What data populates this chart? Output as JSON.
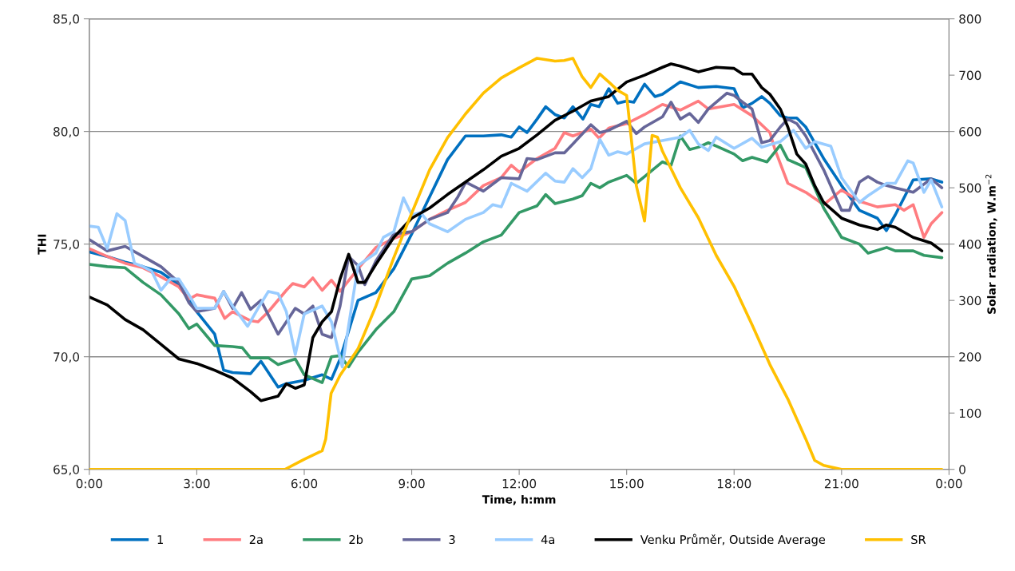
{
  "chart_data": {
    "type": "line",
    "xlabel": "Time, h:mm",
    "ylabel": "THI",
    "y2label": "Solar radiation, W.m$^{−2}$",
    "xlim": [
      0,
      24
    ],
    "xticks": [
      {
        "value": 0,
        "label": "0:00"
      },
      {
        "value": 3,
        "label": "3:00"
      },
      {
        "value": 6,
        "label": "6:00"
      },
      {
        "value": 9,
        "label": "9:00"
      },
      {
        "value": 12,
        "label": "12:00"
      },
      {
        "value": 15,
        "label": "15:00"
      },
      {
        "value": 18,
        "label": "18:00"
      },
      {
        "value": 21,
        "label": "21:00"
      },
      {
        "value": 24,
        "label": "0:00"
      }
    ],
    "ylim": [
      65,
      85
    ],
    "yticks": [
      {
        "value": 65,
        "label": "65,0"
      },
      {
        "value": 70,
        "label": "70,0"
      },
      {
        "value": 75,
        "label": "75,0"
      },
      {
        "value": 80,
        "label": "80,0"
      },
      {
        "value": 85,
        "label": "85,0"
      }
    ],
    "y2lim": [
      0,
      800
    ],
    "y2ticks": [
      0,
      100,
      200,
      300,
      400,
      500,
      600,
      700,
      800
    ],
    "grid": "y",
    "legend": "bottom",
    "marker": "none",
    "line_style": "solid",
    "series": [
      {
        "name": "1",
        "color": "#0070c0",
        "x": [
          0,
          0.5,
          1,
          1.5,
          2,
          2.5,
          3,
          3.5,
          3.75,
          4,
          4.5,
          4.79,
          5,
          5.27,
          5.5,
          6,
          6.5,
          6.76,
          7,
          7.5,
          8,
          8.5,
          9,
          9.5,
          10,
          10.5,
          11,
          11.5,
          11.78,
          12,
          12.22,
          12.5,
          12.74,
          13,
          13.26,
          13.5,
          13.78,
          14,
          14.23,
          14.5,
          14.75,
          15,
          15.2,
          15.5,
          15.79,
          16,
          16.5,
          17,
          17.5,
          18,
          18.24,
          18.5,
          18.77,
          19,
          19.29,
          19.5,
          19.75,
          20,
          20.5,
          21,
          21.5,
          22,
          22.25,
          22.5,
          23,
          23.5,
          23.8
        ],
        "values": [
          74.65,
          74.45,
          74.2,
          74.0,
          73.75,
          73.2,
          72.0,
          71.0,
          69.4,
          69.3,
          69.25,
          69.8,
          69.3,
          68.65,
          68.8,
          68.95,
          69.2,
          69.0,
          69.9,
          72.5,
          72.85,
          73.9,
          75.45,
          77.1,
          78.75,
          79.8,
          79.8,
          79.85,
          79.75,
          80.2,
          79.95,
          80.55,
          81.1,
          80.75,
          80.6,
          81.1,
          80.55,
          81.2,
          81.1,
          81.9,
          81.25,
          81.35,
          81.3,
          82.1,
          81.55,
          81.65,
          82.2,
          81.95,
          82.0,
          81.9,
          81.05,
          81.25,
          81.55,
          81.25,
          80.7,
          80.6,
          80.6,
          80.2,
          78.8,
          77.6,
          76.5,
          76.15,
          75.6,
          76.3,
          77.85,
          77.9,
          77.75
        ]
      },
      {
        "name": "2a",
        "color": "#ff7c80",
        "x": [
          0,
          0.5,
          1,
          1.5,
          2,
          2.5,
          2.78,
          3,
          3.5,
          3.78,
          4,
          4.5,
          4.71,
          5,
          5.5,
          5.68,
          6,
          6.24,
          6.5,
          6.76,
          7,
          7.5,
          8,
          8.5,
          9,
          9.5,
          10,
          10.5,
          11,
          11.5,
          11.78,
          12,
          12.5,
          13,
          13.26,
          13.5,
          14,
          14.23,
          14.5,
          15,
          15.5,
          16,
          16.5,
          17,
          17.28,
          18,
          18.5,
          19,
          19.14,
          19.5,
          20,
          20.5,
          21,
          21.5,
          22,
          22.5,
          22.74,
          23,
          23.3,
          23.5,
          23.8
        ],
        "values": [
          74.8,
          74.45,
          74.15,
          73.95,
          73.55,
          73.1,
          72.55,
          72.75,
          72.6,
          71.7,
          72.0,
          71.6,
          71.55,
          72.0,
          72.95,
          73.25,
          73.1,
          73.5,
          72.95,
          73.4,
          72.9,
          73.9,
          74.85,
          75.25,
          75.55,
          76.1,
          76.5,
          76.85,
          77.6,
          77.95,
          78.5,
          78.2,
          78.8,
          79.25,
          79.95,
          79.8,
          80.1,
          79.7,
          80.15,
          80.35,
          80.75,
          81.2,
          80.95,
          81.35,
          81.0,
          81.2,
          80.7,
          79.95,
          79.2,
          77.7,
          77.3,
          76.75,
          77.4,
          76.9,
          76.65,
          76.75,
          76.5,
          76.75,
          75.3,
          75.9,
          76.4
        ]
      },
      {
        "name": "2b",
        "color": "#339966",
        "x": [
          0,
          0.5,
          1,
          1.5,
          2,
          2.5,
          2.78,
          3,
          3.5,
          4,
          4.27,
          4.5,
          5,
          5.27,
          5.75,
          6,
          6.5,
          6.76,
          7,
          7.24,
          7.5,
          8,
          8.5,
          9,
          9.5,
          10,
          10.5,
          11,
          11.5,
          12,
          12.5,
          12.74,
          13,
          13.5,
          13.76,
          14,
          14.25,
          14.5,
          15,
          15.27,
          15.5,
          16,
          16.24,
          16.5,
          16.76,
          17,
          17.28,
          17.5,
          18,
          18.24,
          18.5,
          18.92,
          19.29,
          19.5,
          20,
          20.5,
          21,
          21.5,
          21.74,
          22.26,
          22.5,
          23,
          23.3,
          23.8
        ],
        "values": [
          74.1,
          74.0,
          73.95,
          73.3,
          72.75,
          71.9,
          71.25,
          71.45,
          70.5,
          70.45,
          70.4,
          69.95,
          69.95,
          69.65,
          69.9,
          69.2,
          68.85,
          70.0,
          70.05,
          69.55,
          70.2,
          71.2,
          72.0,
          73.45,
          73.6,
          74.15,
          74.6,
          75.1,
          75.4,
          76.4,
          76.7,
          77.2,
          76.8,
          77.0,
          77.15,
          77.7,
          77.5,
          77.75,
          78.05,
          77.7,
          78.0,
          78.65,
          78.5,
          79.8,
          79.2,
          79.3,
          79.5,
          79.35,
          79.0,
          78.7,
          78.85,
          78.65,
          79.4,
          78.75,
          78.4,
          76.6,
          75.3,
          75.0,
          74.6,
          74.85,
          74.7,
          74.7,
          74.5,
          74.4
        ]
      },
      {
        "name": "3",
        "color": "#666699",
        "x": [
          0,
          0.5,
          1,
          1.5,
          2,
          2.5,
          2.78,
          3,
          3.5,
          3.75,
          4,
          4.25,
          4.5,
          4.79,
          5.27,
          5.5,
          5.75,
          6,
          6.24,
          6.5,
          6.76,
          7,
          7.24,
          7.5,
          7.69,
          8,
          8.5,
          9,
          9.5,
          10,
          10.29,
          10.51,
          11,
          11.5,
          12,
          12.22,
          12.5,
          13,
          13.26,
          13.5,
          14,
          14.25,
          14.5,
          15,
          15.27,
          15.5,
          16,
          16.24,
          16.5,
          16.76,
          17,
          17.28,
          17.8,
          18,
          18.24,
          18.5,
          18.77,
          19,
          19.29,
          19.5,
          19.75,
          20,
          20.5,
          21,
          21.22,
          21.5,
          21.74,
          22,
          22.26,
          22.5,
          23,
          23.5,
          23.8
        ],
        "values": [
          75.2,
          74.7,
          74.9,
          74.45,
          74.0,
          73.3,
          72.4,
          72.0,
          72.15,
          72.9,
          72.15,
          72.85,
          72.1,
          72.5,
          71.0,
          71.55,
          72.15,
          71.9,
          72.25,
          71.0,
          70.85,
          72.25,
          74.45,
          74.05,
          73.2,
          74.25,
          75.45,
          75.55,
          76.1,
          76.4,
          77.1,
          77.75,
          77.35,
          77.95,
          77.9,
          78.8,
          78.75,
          79.05,
          79.05,
          79.45,
          80.3,
          79.95,
          80.05,
          80.45,
          79.9,
          80.2,
          80.65,
          81.3,
          80.55,
          80.8,
          80.4,
          81.0,
          81.7,
          81.6,
          81.3,
          81.0,
          79.5,
          79.6,
          80.2,
          80.55,
          80.35,
          79.8,
          78.3,
          76.5,
          76.5,
          77.75,
          78.0,
          77.75,
          77.6,
          77.5,
          77.3,
          77.9,
          77.5
        ]
      },
      {
        "name": "4a",
        "color": "#99ccff",
        "x": [
          0,
          0.25,
          0.5,
          0.77,
          1,
          1.26,
          1.5,
          1.74,
          2,
          2.26,
          2.5,
          2.78,
          3,
          3.5,
          3.75,
          4,
          4.42,
          4.71,
          5,
          5.27,
          5.5,
          5.75,
          6,
          6.5,
          6.76,
          7.06,
          7.5,
          8,
          8.21,
          8.5,
          8.77,
          9,
          9.25,
          9.5,
          10,
          10.5,
          11,
          11.26,
          11.5,
          11.78,
          12.22,
          12.74,
          13,
          13.26,
          13.5,
          13.76,
          14,
          14.25,
          14.5,
          14.75,
          15,
          15.5,
          16,
          16.5,
          16.76,
          17,
          17.28,
          17.5,
          18,
          18.5,
          18.77,
          19.29,
          19.66,
          20,
          20.25,
          20.7,
          21,
          21.5,
          21.74,
          22.26,
          22.5,
          22.85,
          23,
          23.3,
          23.5,
          23.8
        ],
        "values": [
          75.8,
          75.75,
          74.8,
          76.35,
          76.05,
          74.15,
          74.0,
          73.8,
          72.95,
          73.45,
          73.45,
          72.75,
          72.15,
          72.15,
          72.9,
          72.25,
          71.35,
          72.15,
          72.9,
          72.8,
          72.0,
          70.1,
          71.9,
          72.25,
          71.55,
          69.55,
          74.05,
          74.6,
          75.3,
          75.55,
          77.05,
          76.3,
          76.4,
          75.9,
          75.55,
          76.1,
          76.4,
          76.75,
          76.65,
          77.7,
          77.35,
          78.15,
          77.8,
          77.75,
          78.35,
          77.95,
          78.35,
          79.65,
          78.95,
          79.1,
          79.0,
          79.45,
          79.6,
          79.75,
          80.05,
          79.45,
          79.15,
          79.75,
          79.25,
          79.7,
          79.3,
          79.55,
          80.05,
          79.25,
          79.55,
          79.35,
          77.95,
          76.85,
          77.15,
          77.7,
          77.7,
          78.7,
          78.6,
          77.3,
          77.85,
          76.65
        ]
      },
      {
        "name": "Venku Průměr, Outside Average",
        "color": "#000000",
        "x": [
          0,
          0.5,
          1,
          1.5,
          2,
          2.5,
          3,
          3.5,
          4,
          4.5,
          4.79,
          5.27,
          5.5,
          5.75,
          6,
          6.24,
          6.5,
          6.76,
          7,
          7.24,
          7.5,
          7.69,
          8,
          8.5,
          9,
          9.5,
          10,
          10.5,
          11,
          11.5,
          12,
          12.5,
          13,
          13.5,
          14,
          14.5,
          15,
          15.5,
          16,
          16.24,
          16.5,
          17,
          17.5,
          18,
          18.24,
          18.5,
          18.77,
          19,
          19.29,
          19.5,
          19.75,
          20,
          20.25,
          20.5,
          21,
          21.5,
          22,
          22.25,
          22.5,
          23,
          23.5,
          23.8
        ],
        "values": [
          72.65,
          72.3,
          71.65,
          71.2,
          70.55,
          69.9,
          69.7,
          69.4,
          69.05,
          68.45,
          68.05,
          68.25,
          68.8,
          68.6,
          68.75,
          70.85,
          71.55,
          72.0,
          73.45,
          74.55,
          73.3,
          73.3,
          74.1,
          75.3,
          76.15,
          76.6,
          77.2,
          77.75,
          78.3,
          78.9,
          79.25,
          79.85,
          80.5,
          80.9,
          81.35,
          81.55,
          82.2,
          82.5,
          82.85,
          83.0,
          82.9,
          82.65,
          82.85,
          82.8,
          82.55,
          82.55,
          81.95,
          81.65,
          81.0,
          80.2,
          79.0,
          78.55,
          77.6,
          76.85,
          76.15,
          75.85,
          75.65,
          75.85,
          75.75,
          75.3,
          75.05,
          74.7
        ]
      },
      {
        "name": "SR",
        "color": "#ffc000",
        "axis": "y2",
        "x": [
          0,
          5.46,
          6,
          6.5,
          6.6,
          6.75,
          7,
          7.5,
          8,
          8.5,
          9,
          9.5,
          10,
          10.5,
          11,
          11.5,
          12,
          12.5,
          13,
          13.26,
          13.5,
          13.76,
          14,
          14.25,
          14.5,
          14.75,
          15,
          15.12,
          15.27,
          15.5,
          15.71,
          15.86,
          16,
          16.5,
          17,
          17.5,
          18,
          18.5,
          19,
          19.5,
          20,
          20.25,
          20.5,
          21,
          23.8
        ],
        "values": [
          0,
          0,
          18,
          33,
          54,
          135,
          167,
          214,
          290,
          376,
          455,
          532,
          589,
          631,
          668,
          695,
          713,
          730,
          725,
          726,
          730,
          697,
          678,
          702,
          688,
          673,
          664,
          593,
          504,
          441,
          593,
          590,
          565,
          500,
          447,
          380,
          325,
          257,
          186,
          125,
          54,
          16,
          7,
          0,
          0
        ]
      }
    ]
  }
}
